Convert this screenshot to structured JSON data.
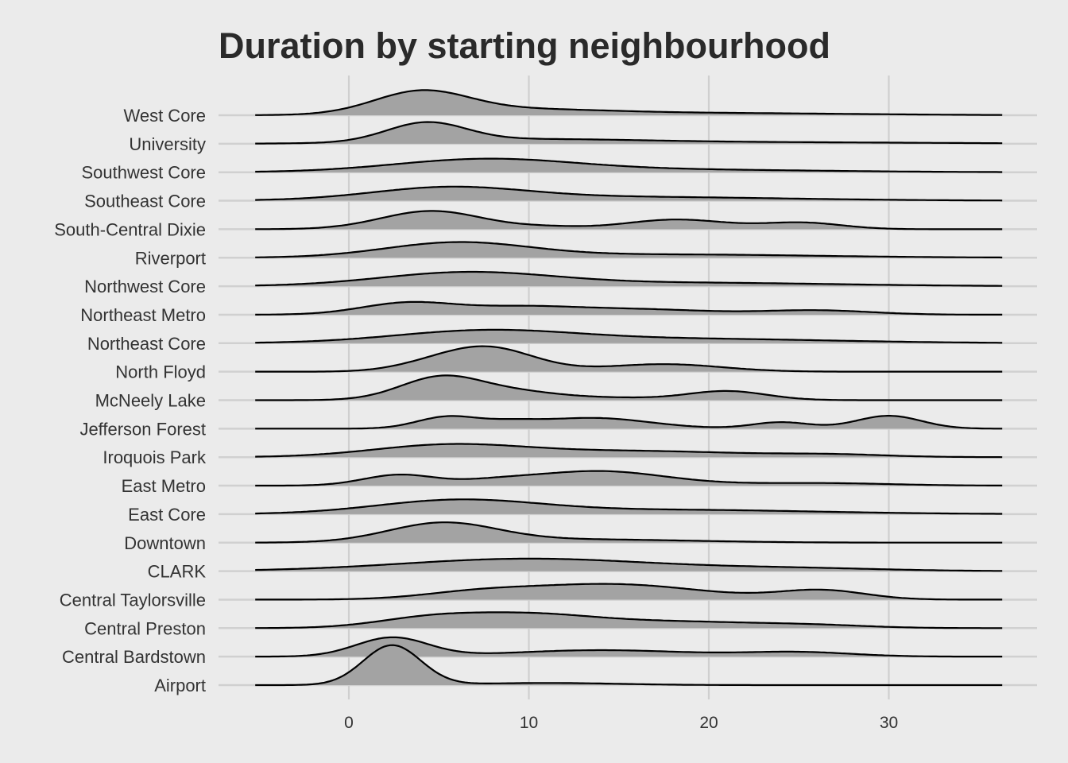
{
  "chart_data": {
    "type": "ridgeline",
    "title": "Duration by starting neighbourhood",
    "xlabel": "",
    "ylabel": "",
    "xlim": [
      -8,
      38
    ],
    "x_range_curves": [
      -5.2,
      36.3
    ],
    "x_ticks": [
      0,
      10,
      20,
      30
    ],
    "x_tick_labels": [
      "0",
      "10",
      "20",
      "30"
    ],
    "grid": true,
    "fill_color": "#a3a3a3",
    "line_color": "#000000",
    "background": "#ebebeb",
    "categories": [
      "West Core",
      "University",
      "Southwest Core",
      "Southeast Core",
      "South-Central Dixie",
      "Riverport",
      "Northwest Core",
      "Northeast Metro",
      "Northeast Core",
      "North Floyd",
      "McNeely Lake",
      "Jefferson Forest",
      "Iroquois Park",
      "East Metro",
      "East Core",
      "Downtown",
      "CLARK",
      "Central Taylorsville",
      "Central Preston",
      "Central Bardstown",
      "Airport"
    ],
    "density_scale_note": "relative ridge height; 1.0 = tallest ridge",
    "series": [
      {
        "name": "West Core",
        "peaks": [
          [
            4.0,
            1.0,
            2.6
          ],
          [
            9,
            0.25,
            5
          ],
          [
            20,
            0.1,
            8
          ]
        ]
      },
      {
        "name": "University",
        "peaks": [
          [
            4.3,
            0.88,
            2.2
          ],
          [
            10,
            0.18,
            6
          ],
          [
            22,
            0.07,
            10
          ]
        ]
      },
      {
        "name": "Southwest Core",
        "peaks": [
          [
            7.5,
            0.58,
            5.0
          ],
          [
            18,
            0.12,
            8
          ]
        ]
      },
      {
        "name": "Southeast Core",
        "peaks": [
          [
            5.5,
            0.55,
            4.2
          ],
          [
            15,
            0.18,
            9
          ]
        ]
      },
      {
        "name": "South-Central Dixie",
        "peaks": [
          [
            4.6,
            0.85,
            2.8
          ],
          [
            18.2,
            0.45,
            2.8
          ],
          [
            25.2,
            0.3,
            2.2
          ],
          [
            11,
            0.1,
            2
          ]
        ]
      },
      {
        "name": "Riverport",
        "peaks": [
          [
            6.0,
            0.68,
            4.0
          ],
          [
            18,
            0.15,
            8
          ]
        ]
      },
      {
        "name": "Northwest Core",
        "peaks": [
          [
            6.5,
            0.62,
            4.8
          ],
          [
            19,
            0.16,
            8
          ]
        ]
      },
      {
        "name": "Northeast Metro",
        "peaks": [
          [
            3.3,
            0.55,
            2.6
          ],
          [
            9.5,
            0.32,
            3
          ],
          [
            16,
            0.25,
            4
          ],
          [
            26,
            0.2,
            3
          ]
        ]
      },
      {
        "name": "Northeast Core",
        "peaks": [
          [
            7.5,
            0.55,
            5.0
          ],
          [
            19,
            0.2,
            8
          ]
        ]
      },
      {
        "name": "North Floyd",
        "peaks": [
          [
            7.6,
            1.15,
            2.6
          ],
          [
            17.5,
            0.35,
            3.2
          ],
          [
            4,
            0.15,
            2
          ]
        ]
      },
      {
        "name": "McNeely Lake",
        "peaks": [
          [
            5.2,
            1.1,
            2.3
          ],
          [
            9.5,
            0.3,
            2.2
          ],
          [
            21,
            0.42,
            2.2
          ],
          [
            14,
            0.12,
            3
          ]
        ]
      },
      {
        "name": "Jefferson Forest",
        "peaks": [
          [
            5.5,
            0.55,
            1.7
          ],
          [
            13.5,
            0.5,
            3.2
          ],
          [
            24,
            0.3,
            1.6
          ],
          [
            30.0,
            0.6,
            1.8
          ],
          [
            9,
            0.2,
            1.5
          ]
        ]
      },
      {
        "name": "Iroquois Park",
        "peaks": [
          [
            5.5,
            0.55,
            4.2
          ],
          [
            16,
            0.28,
            6
          ],
          [
            27,
            0.1,
            3
          ]
        ]
      },
      {
        "name": "East Metro",
        "peaks": [
          [
            2.8,
            0.5,
            2.0
          ],
          [
            13.8,
            0.68,
            3.8
          ],
          [
            8,
            0.15,
            2
          ],
          [
            26,
            0.12,
            4
          ]
        ]
      },
      {
        "name": "East Core",
        "peaks": [
          [
            6.0,
            0.62,
            4.5
          ],
          [
            18,
            0.2,
            8
          ]
        ]
      },
      {
        "name": "Downtown",
        "peaks": [
          [
            5.2,
            0.88,
            3.0
          ],
          [
            13,
            0.15,
            6
          ]
        ]
      },
      {
        "name": "CLARK",
        "peaks": [
          [
            10.0,
            0.58,
            7.0
          ],
          [
            25,
            0.12,
            5
          ]
        ]
      },
      {
        "name": "Central Taylorsville",
        "peaks": [
          [
            14.5,
            0.72,
            5.0
          ],
          [
            26.3,
            0.42,
            2.4
          ],
          [
            7,
            0.25,
            3
          ]
        ]
      },
      {
        "name": "Central Preston",
        "peaks": [
          [
            4.5,
            0.45,
            3.0
          ],
          [
            10.0,
            0.55,
            3.5
          ],
          [
            18,
            0.3,
            5
          ],
          [
            26,
            0.1,
            3
          ]
        ]
      },
      {
        "name": "Central Bardstown",
        "peaks": [
          [
            2.4,
            0.88,
            2.0
          ],
          [
            14,
            0.3,
            5
          ],
          [
            25,
            0.2,
            3
          ]
        ]
      },
      {
        "name": "Airport",
        "peaks": [
          [
            2.4,
            1.85,
            1.6
          ],
          [
            11,
            0.1,
            4
          ]
        ]
      }
    ]
  }
}
